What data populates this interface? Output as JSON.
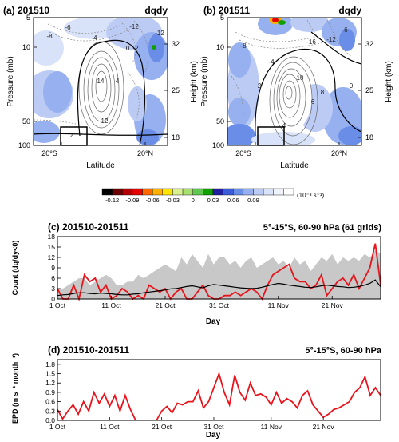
{
  "chart_data": [
    {
      "id": "a",
      "type": "heatmap",
      "label": "(a) 201510",
      "variable": "dqdy",
      "ylabel": "Pressure (mb)",
      "ylabel_right": "Height (km)",
      "xlabel": "Latitude",
      "yticks": [
        "5",
        "10",
        "50",
        "100"
      ],
      "yticks_right": [
        "32",
        "25",
        "18"
      ],
      "xticks": [
        "20°S",
        "20°N"
      ],
      "contour_labels": [
        "-14",
        "-12",
        "-8",
        "-6",
        "-4",
        "-2",
        "0",
        "2",
        "4",
        "8",
        "10",
        "12",
        "14"
      ],
      "box": {
        "lat_range": [
          "15°S",
          "5°S"
        ],
        "pressure_range": [
          60,
          90
        ]
      }
    },
    {
      "id": "b",
      "type": "heatmap",
      "label": "(b) 201511",
      "variable": "dqdy",
      "ylabel": "Pressure (mb)",
      "ylabel_right": "Height (km)",
      "xlabel": "Latitude",
      "yticks": [
        "5",
        "10",
        "50",
        "100"
      ],
      "yticks_right": [
        "32",
        "25",
        "18"
      ],
      "xticks": [
        "20°S",
        "20°N"
      ],
      "contour_labels": [
        "-16",
        "-12",
        "-8",
        "-6",
        "-4",
        "-2",
        "0",
        "2",
        "4",
        "6",
        "8",
        "10",
        "12"
      ],
      "box": {
        "lat_range": [
          "15°S",
          "5°S"
        ],
        "pressure_range": [
          60,
          90
        ]
      }
    },
    {
      "id": "colorbar",
      "type": "heatmap",
      "ticks": [
        "-0.12",
        "-0.09",
        "-0.06",
        "-0.03",
        "0",
        "0.03",
        "0.06",
        "0.09"
      ],
      "unit": "(10⁻³ s⁻¹)",
      "colors": [
        "#000000",
        "#6b0000",
        "#b40000",
        "#e60000",
        "#ff6a00",
        "#ffb000",
        "#ffe400",
        "#d8f090",
        "#a8e070",
        "#60c850",
        "#10a000",
        "#2020a0",
        "#3a5cd8",
        "#6a8ee8",
        "#96b0f0",
        "#bccbf4",
        "#d8e2f8",
        "#eef2fb",
        "#ffffff"
      ]
    },
    {
      "id": "c",
      "type": "line",
      "label": "(c) 201510-201511",
      "region": "5°-15°S, 60-90 hPa (61 grids)",
      "ylabel": "Count (dq/dy<0)",
      "xlabel": "Day",
      "ylim": [
        0,
        18
      ],
      "yticks": [
        "0",
        "3",
        "6",
        "9",
        "12",
        "15",
        "18"
      ],
      "xticks": [
        "1 Oct",
        "11 Oct",
        "21 Oct",
        "31 Oct",
        "11 Nov",
        "21 Nov"
      ],
      "series": [
        {
          "color": "#e8141c",
          "values": [
            3,
            0,
            0,
            4,
            0,
            7,
            5,
            6,
            2,
            4,
            0,
            1,
            3,
            2,
            0,
            1,
            0,
            4,
            3,
            2,
            3,
            0,
            2,
            3,
            0,
            0,
            2,
            4,
            1,
            0,
            0,
            1,
            1,
            2,
            1,
            2,
            3,
            2,
            0,
            4,
            7,
            8,
            9,
            10,
            6,
            5,
            5,
            3,
            4,
            7,
            1,
            3,
            5,
            6,
            4,
            7,
            3,
            6,
            9,
            16,
            4
          ]
        },
        {
          "color": "#000000",
          "values": [
            1,
            1.2,
            1.3,
            1.6,
            1.8,
            1.8,
            1.6,
            1.5,
            1.7,
            1.6,
            1.5,
            1.3,
            1.2,
            1.2,
            1.4,
            1.5,
            1.8,
            2,
            2.2,
            2.4,
            2.6,
            2.9,
            3,
            3.3,
            3.6,
            3.8,
            3.5,
            3.2,
            3.8,
            4.2,
            4,
            3.8,
            3.6,
            3.4,
            3.2,
            3.1,
            3,
            3.1,
            3.4,
            3.8,
            4.2,
            4.5,
            4.3,
            4,
            3.8,
            3.6,
            3.4,
            3.3,
            3.5,
            3.8,
            4,
            3.8,
            3.6,
            3.5,
            3.3,
            3.4,
            3.6,
            4,
            4.5,
            5.5,
            3.5
          ]
        },
        {
          "color": "#c8c8c8",
          "fill": true,
          "values": [
            3,
            3,
            4,
            5,
            6,
            6,
            4,
            5,
            6,
            7,
            6,
            4,
            4,
            5,
            5,
            7,
            6,
            7,
            8,
            9,
            10,
            9,
            8,
            12,
            10,
            13,
            11,
            9,
            13,
            10,
            12,
            12,
            10,
            11,
            9,
            11,
            12,
            9,
            10,
            11,
            12,
            10,
            11,
            9,
            12,
            10,
            11,
            8,
            10,
            12,
            11,
            13,
            10,
            12,
            11,
            12,
            11,
            13,
            12,
            14,
            13
          ]
        }
      ]
    },
    {
      "id": "d",
      "type": "line",
      "label": "(d) 201510-201511",
      "region": "5°-15°S, 60-90 hPa",
      "ylabel": "EPD (m s⁻¹ month⁻¹)",
      "xlabel": "Day",
      "ylim": [
        0,
        1.95
      ],
      "yticks": [
        "0.0",
        "0.3",
        "0.6",
        "0.9",
        "1.2",
        "1.5",
        "1.8"
      ],
      "xticks": [
        "1 Oct",
        "11 Oct",
        "21 Oct",
        "31 Oct",
        "11 Nov",
        "21 Nov"
      ],
      "series": [
        {
          "color": "#e8141c",
          "values": [
            0.35,
            0.05,
            0.3,
            0.5,
            0.2,
            0.6,
            0.3,
            0.9,
            0.55,
            0.85,
            0.45,
            0.8,
            0.3,
            0.8,
            0.35,
            0.0,
            null,
            null,
            null,
            0.0,
            0.3,
            0.45,
            0.25,
            0.55,
            0.5,
            0.6,
            0.6,
            0.95,
            0.4,
            0.6,
            1.05,
            1.5,
            0.9,
            0.5,
            1.45,
            0.9,
            0.65,
            1.2,
            0.8,
            0.85,
            0.75,
            0.5,
            0.9,
            0.55,
            0.7,
            0.6,
            0.4,
            0.8,
            0.95,
            0.5,
            0.3,
            0.1,
            0.2,
            0.35,
            0.4,
            0.5,
            0.6,
            0.9,
            1.05,
            1.4,
            0.8,
            1.05,
            0.8
          ]
        }
      ]
    }
  ]
}
